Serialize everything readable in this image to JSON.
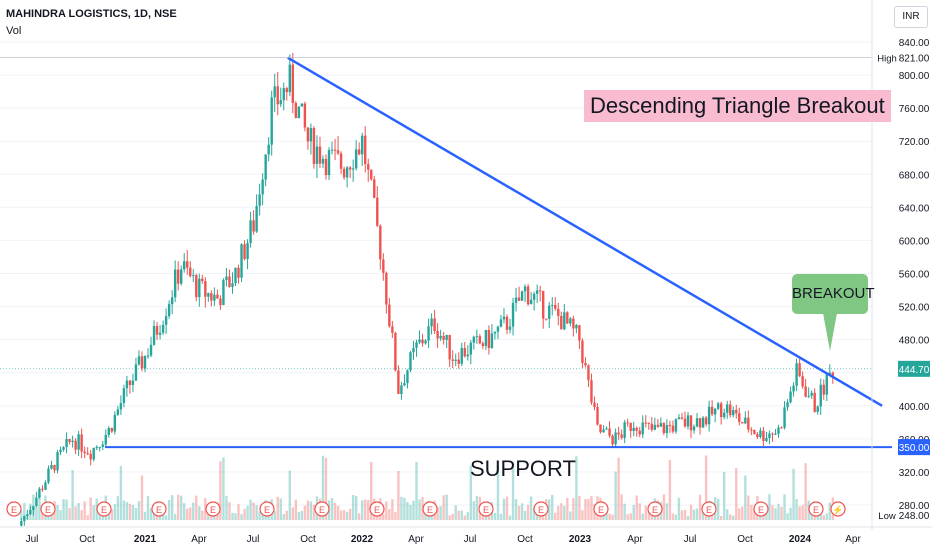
{
  "header": {
    "title": "MAHINDRA LOGISTICS, 1D, NSE",
    "volume_label": "Vol"
  },
  "currency": "INR",
  "annotations": {
    "banner": "Descending Triangle Breakout",
    "callout": "BREAKOUT",
    "support_text": "SUPPORT"
  },
  "colors": {
    "up": "#26a69a",
    "down": "#ef5350",
    "trendline": "#2962ff",
    "banner_bg": "#f8bbd0",
    "callout_bg": "#81c784",
    "last_price_bg": "#26a69a",
    "support_bg": "#2962ff"
  },
  "chart_data": {
    "type": "candlestick",
    "y_axis": {
      "ylim": [
        240,
        860
      ],
      "ticks": [
        280,
        320,
        360,
        400,
        440,
        480,
        520,
        560,
        600,
        640,
        680,
        720,
        760,
        800,
        840
      ],
      "tick_labels": [
        "280.00",
        "320.00",
        "360.00",
        "400.00",
        "440.00",
        "480.00",
        "520.00",
        "560.00",
        "600.00",
        "640.00",
        "680.00",
        "720.00",
        "760.00",
        "800.00",
        "840.00"
      ]
    },
    "x_axis": {
      "labels": [
        "Jul",
        "Oct",
        "2021",
        "Apr",
        "Jul",
        "Oct",
        "2022",
        "Apr",
        "Jul",
        "Oct",
        "2023",
        "Apr",
        "Jul",
        "Oct",
        "2024",
        "Apr"
      ],
      "bold": [
        "2021",
        "2022",
        "2023",
        "2024"
      ]
    },
    "price_labels": {
      "high": {
        "label": "High",
        "value": "821.00"
      },
      "last": {
        "value": "444.70"
      },
      "support": {
        "value": "350.00"
      },
      "low": {
        "label": "Low",
        "value": "248.00"
      }
    },
    "price_path": [
      [
        "2020-06",
        255
      ],
      [
        "2020-07",
        290
      ],
      [
        "2020-08",
        330
      ],
      [
        "2020-09",
        360
      ],
      [
        "2020-10",
        345
      ],
      [
        "2020-11",
        370
      ],
      [
        "2020-12",
        420
      ],
      [
        "2021-01",
        460
      ],
      [
        "2021-02",
        510
      ],
      [
        "2021-03",
        570
      ],
      [
        "2021-04",
        540
      ],
      [
        "2021-05",
        530
      ],
      [
        "2021-06",
        560
      ],
      [
        "2021-07",
        620
      ],
      [
        "2021-08",
        760
      ],
      [
        "2021-09",
        790
      ],
      [
        "2021-10",
        720
      ],
      [
        "2021-11",
        700
      ],
      [
        "2021-12",
        690
      ],
      [
        "2022-01",
        720
      ],
      [
        "2022-02",
        590
      ],
      [
        "2022-03",
        420
      ],
      [
        "2022-04",
        470
      ],
      [
        "2022-05",
        500
      ],
      [
        "2022-06",
        460
      ],
      [
        "2022-07",
        470
      ],
      [
        "2022-08",
        480
      ],
      [
        "2022-09",
        500
      ],
      [
        "2022-10",
        540
      ],
      [
        "2022-11",
        520
      ],
      [
        "2022-12",
        505
      ],
      [
        "2023-01",
        480
      ],
      [
        "2023-02",
        370
      ],
      [
        "2023-03",
        360
      ],
      [
        "2023-04",
        380
      ],
      [
        "2023-05",
        370
      ],
      [
        "2023-06",
        375
      ],
      [
        "2023-07",
        380
      ],
      [
        "2023-08",
        385
      ],
      [
        "2023-09",
        400
      ],
      [
        "2023-10",
        380
      ],
      [
        "2023-11",
        365
      ],
      [
        "2023-12",
        370
      ],
      [
        "2024-01",
        440
      ],
      [
        "2024-02",
        400
      ],
      [
        "2024-03",
        444.7
      ]
    ],
    "lines": {
      "descending_trendline": {
        "from": [
          "2021-08",
          821
        ],
        "to": [
          "2024-06",
          400
        ]
      },
      "support": {
        "value": 350
      }
    }
  }
}
